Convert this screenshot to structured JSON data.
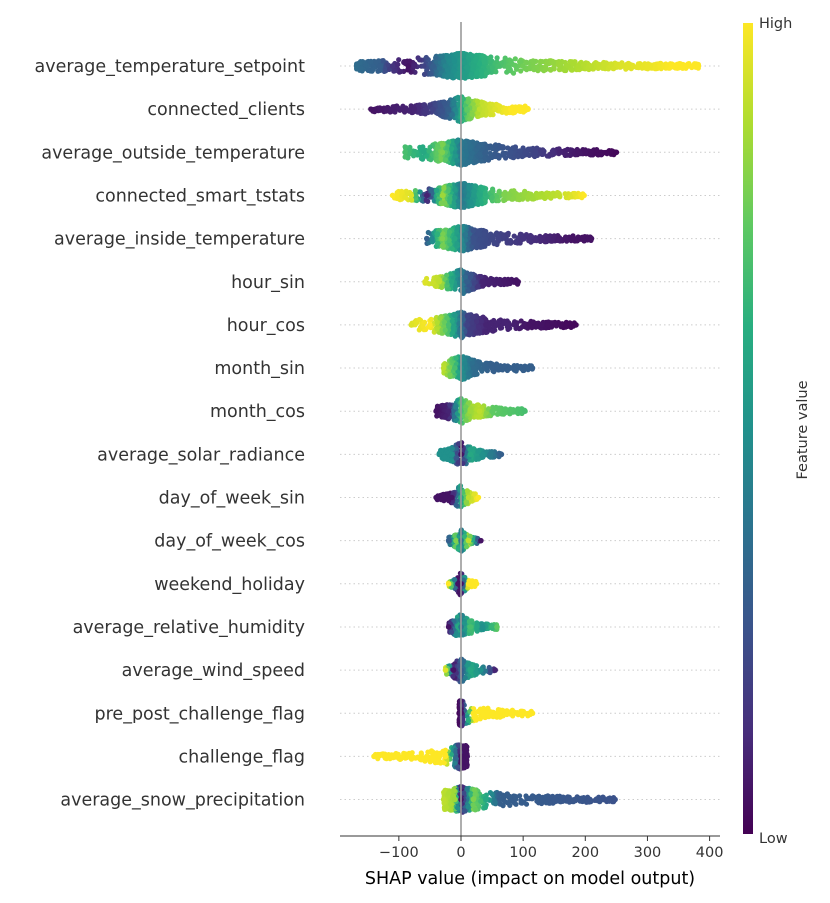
{
  "chart_data": {
    "type": "scatter",
    "subtype": "shap-beeswarm",
    "xlabel": "SHAP value (impact on model output)",
    "xlim": [
      -190,
      410
    ],
    "xticks": [
      -100,
      0,
      100,
      200,
      300,
      400
    ],
    "xtick_labels": [
      "−100",
      "0",
      "100",
      "200",
      "300",
      "400"
    ],
    "colorbar": {
      "label": "Feature value",
      "high": "High",
      "low": "Low",
      "low_color": "#440154",
      "high_color": "#fde725"
    },
    "features": [
      {
        "name": "average_temperature_setpoint",
        "min": -168,
        "max": 382,
        "low_color_side": "negative",
        "points": [
          {
            "x": -168,
            "c": 0.35
          },
          {
            "x": -130,
            "c": 0.3
          },
          {
            "x": -110,
            "c": 0.15
          },
          {
            "x": -85,
            "c": 0.05
          },
          {
            "x": -75,
            "c": 0.1
          },
          {
            "x": -60,
            "c": 0.2
          },
          {
            "x": -45,
            "c": 0.3
          },
          {
            "x": -25,
            "c": 0.45
          },
          {
            "x": 20,
            "c": 0.6
          },
          {
            "x": 60,
            "c": 0.7
          },
          {
            "x": 100,
            "c": 0.78
          },
          {
            "x": 160,
            "c": 0.85
          },
          {
            "x": 210,
            "c": 0.9
          },
          {
            "x": 260,
            "c": 0.95
          },
          {
            "x": 300,
            "c": 0.97
          },
          {
            "x": 340,
            "c": 1.0
          },
          {
            "x": 382,
            "c": 1.0
          }
        ]
      },
      {
        "name": "connected_clients",
        "min": -145,
        "max": 108,
        "points": [
          {
            "x": -145,
            "c": 0.05
          },
          {
            "x": -110,
            "c": 0.08
          },
          {
            "x": -75,
            "c": 0.1
          },
          {
            "x": -45,
            "c": 0.2
          },
          {
            "x": -20,
            "c": 0.3
          },
          {
            "x": 10,
            "c": 0.75
          },
          {
            "x": 30,
            "c": 0.9
          },
          {
            "x": 55,
            "c": 0.95
          },
          {
            "x": 80,
            "c": 1.0
          },
          {
            "x": 108,
            "c": 1.0
          }
        ]
      },
      {
        "name": "average_outside_temperature",
        "min": -90,
        "max": 250,
        "points": [
          {
            "x": -90,
            "c": 0.7
          },
          {
            "x": -60,
            "c": 0.6
          },
          {
            "x": -30,
            "c": 0.8
          },
          {
            "x": 0,
            "c": 0.4
          },
          {
            "x": 40,
            "c": 0.3
          },
          {
            "x": 80,
            "c": 0.25
          },
          {
            "x": 120,
            "c": 0.2
          },
          {
            "x": 160,
            "c": 0.1
          },
          {
            "x": 200,
            "c": 0.05
          },
          {
            "x": 250,
            "c": 0.02
          }
        ]
      },
      {
        "name": "connected_smart_tstats",
        "min": -110,
        "max": 198,
        "points": [
          {
            "x": -110,
            "c": 1.0
          },
          {
            "x": -80,
            "c": 0.95
          },
          {
            "x": -55,
            "c": 0.1
          },
          {
            "x": -30,
            "c": 0.85
          },
          {
            "x": 0,
            "c": 0.4
          },
          {
            "x": 30,
            "c": 0.6
          },
          {
            "x": 70,
            "c": 0.8
          },
          {
            "x": 110,
            "c": 0.85
          },
          {
            "x": 155,
            "c": 0.9
          },
          {
            "x": 198,
            "c": 1.0
          }
        ]
      },
      {
        "name": "average_inside_temperature",
        "min": -55,
        "max": 210,
        "points": [
          {
            "x": -55,
            "c": 0.3
          },
          {
            "x": -30,
            "c": 0.8
          },
          {
            "x": -10,
            "c": 0.6
          },
          {
            "x": 20,
            "c": 0.25
          },
          {
            "x": 60,
            "c": 0.2
          },
          {
            "x": 100,
            "c": 0.15
          },
          {
            "x": 140,
            "c": 0.1
          },
          {
            "x": 180,
            "c": 0.05
          },
          {
            "x": 210,
            "c": 0.05
          }
        ]
      },
      {
        "name": "hour_sin",
        "min": -58,
        "max": 92,
        "points": [
          {
            "x": -58,
            "c": 0.95
          },
          {
            "x": -35,
            "c": 0.9
          },
          {
            "x": -15,
            "c": 0.6
          },
          {
            "x": 10,
            "c": 0.3
          },
          {
            "x": 35,
            "c": 0.1
          },
          {
            "x": 60,
            "c": 0.08
          },
          {
            "x": 92,
            "c": 0.05
          }
        ]
      },
      {
        "name": "hour_cos",
        "min": -80,
        "max": 185,
        "points": [
          {
            "x": -80,
            "c": 0.95
          },
          {
            "x": -50,
            "c": 1.0
          },
          {
            "x": -20,
            "c": 0.7
          },
          {
            "x": 10,
            "c": 0.2
          },
          {
            "x": 40,
            "c": 0.1
          },
          {
            "x": 75,
            "c": 0.1
          },
          {
            "x": 110,
            "c": 0.05
          },
          {
            "x": 130,
            "c": 0.05
          },
          {
            "x": 185,
            "c": 0.02
          }
        ]
      },
      {
        "name": "month_sin",
        "min": -28,
        "max": 115,
        "points": [
          {
            "x": -28,
            "c": 0.9
          },
          {
            "x": -10,
            "c": 0.7
          },
          {
            "x": 0,
            "c": 0.5
          },
          {
            "x": 20,
            "c": 0.35
          },
          {
            "x": 50,
            "c": 0.3
          },
          {
            "x": 80,
            "c": 0.3
          },
          {
            "x": 115,
            "c": 0.3
          }
        ]
      },
      {
        "name": "month_cos",
        "min": -40,
        "max": 103,
        "points": [
          {
            "x": -40,
            "c": 0.05
          },
          {
            "x": -20,
            "c": 0.1
          },
          {
            "x": 0,
            "c": 0.7
          },
          {
            "x": 15,
            "c": 0.85
          },
          {
            "x": 30,
            "c": 0.9
          },
          {
            "x": 50,
            "c": 0.75
          },
          {
            "x": 103,
            "c": 0.7
          }
        ]
      },
      {
        "name": "average_solar_radiance",
        "min": -35,
        "max": 65,
        "points": [
          {
            "x": -35,
            "c": 0.5
          },
          {
            "x": -15,
            "c": 0.5
          },
          {
            "x": 0,
            "c": 0.05
          },
          {
            "x": 15,
            "c": 0.6
          },
          {
            "x": 35,
            "c": 0.5
          },
          {
            "x": 65,
            "c": 0.3
          }
        ]
      },
      {
        "name": "day_of_week_sin",
        "min": -40,
        "max": 28,
        "points": [
          {
            "x": -40,
            "c": 0.05
          },
          {
            "x": -15,
            "c": 0.05
          },
          {
            "x": 0,
            "c": 0.6
          },
          {
            "x": 12,
            "c": 0.9
          },
          {
            "x": 28,
            "c": 1.0
          }
        ]
      },
      {
        "name": "day_of_week_cos",
        "min": -20,
        "max": 32,
        "points": [
          {
            "x": -20,
            "c": 0.3
          },
          {
            "x": -8,
            "c": 0.8
          },
          {
            "x": 0,
            "c": 0.4
          },
          {
            "x": 12,
            "c": 0.9
          },
          {
            "x": 32,
            "c": 0.05
          }
        ]
      },
      {
        "name": "weekend_holiday",
        "min": -20,
        "max": 25,
        "points": [
          {
            "x": -20,
            "c": 1.0
          },
          {
            "x": -5,
            "c": 0.05
          },
          {
            "x": 0,
            "c": 0.05
          },
          {
            "x": 12,
            "c": 1.0
          },
          {
            "x": 25,
            "c": 1.0
          }
        ]
      },
      {
        "name": "average_relative_humidity",
        "min": -20,
        "max": 58,
        "points": [
          {
            "x": -20,
            "c": 0.05
          },
          {
            "x": -5,
            "c": 0.6
          },
          {
            "x": 0,
            "c": 0.4
          },
          {
            "x": 15,
            "c": 0.7
          },
          {
            "x": 35,
            "c": 0.5
          },
          {
            "x": 58,
            "c": 0.75
          }
        ]
      },
      {
        "name": "average_wind_speed",
        "min": -25,
        "max": 55,
        "points": [
          {
            "x": -25,
            "c": 0.95
          },
          {
            "x": -12,
            "c": 0.05
          },
          {
            "x": 0,
            "c": 0.3
          },
          {
            "x": 15,
            "c": 0.6
          },
          {
            "x": 32,
            "c": 0.5
          },
          {
            "x": 55,
            "c": 0.1
          }
        ]
      },
      {
        "name": "pre_post_challenge_flag",
        "min": -3,
        "max": 115,
        "points": [
          {
            "x": -3,
            "c": 0.02
          },
          {
            "x": 0,
            "c": 0.05
          },
          {
            "x": 20,
            "c": 1.0
          },
          {
            "x": 50,
            "c": 1.0
          },
          {
            "x": 85,
            "c": 1.0
          },
          {
            "x": 115,
            "c": 1.0
          }
        ]
      },
      {
        "name": "challenge_flag",
        "min": -140,
        "max": 10,
        "points": [
          {
            "x": -140,
            "c": 1.0
          },
          {
            "x": -115,
            "c": 1.0
          },
          {
            "x": -85,
            "c": 1.0
          },
          {
            "x": -55,
            "c": 1.0
          },
          {
            "x": -25,
            "c": 1.0
          },
          {
            "x": 0,
            "c": 0.05
          },
          {
            "x": 10,
            "c": 0.05
          }
        ]
      },
      {
        "name": "average_snow_precipitation",
        "min": -28,
        "max": 248,
        "points": [
          {
            "x": -28,
            "c": 0.9
          },
          {
            "x": -10,
            "c": 0.85
          },
          {
            "x": 0,
            "c": 0.05
          },
          {
            "x": 20,
            "c": 0.8
          },
          {
            "x": 40,
            "c": 0.6
          },
          {
            "x": 62,
            "c": 0.3
          },
          {
            "x": 248,
            "c": 0.25
          }
        ]
      }
    ]
  }
}
